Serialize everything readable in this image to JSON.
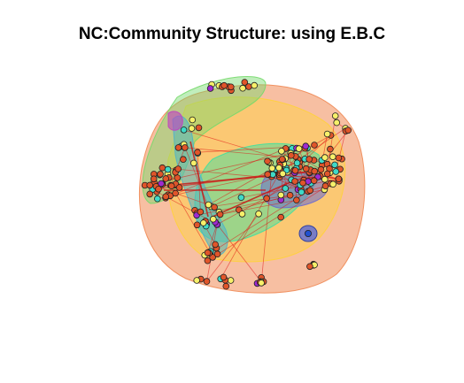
{
  "chart": {
    "title": "NC:Community Structure: using E.B.C"
  },
  "chart_data": {
    "type": "network",
    "title": "NC:Community Structure: using E.B.C",
    "description_visible": "Network graph with overlapping translucent community hulls; nodes colored by community",
    "communities": [
      {
        "name": "",
        "color": "#f08a55",
        "role": "outer hull"
      },
      {
        "name": "",
        "color": "#ffd23a",
        "role": "hull"
      },
      {
        "name": "",
        "color": "#74d96a",
        "role": "hull"
      },
      {
        "name": "",
        "color": "#40e0a0",
        "role": "hull"
      },
      {
        "name": "",
        "color": "#4fb3c9",
        "role": "hull"
      },
      {
        "name": "",
        "color": "#6a6ad0",
        "role": "hull"
      },
      {
        "name": "",
        "color": "#c040c0",
        "role": "hull"
      }
    ],
    "node_colors": [
      "#e0552a",
      "#f7f06a",
      "#3fd9c7",
      "#9e2ad0",
      "#2050d0"
    ],
    "edge_color": "#e01010",
    "axes": "none",
    "grid": false,
    "legend": "none"
  }
}
